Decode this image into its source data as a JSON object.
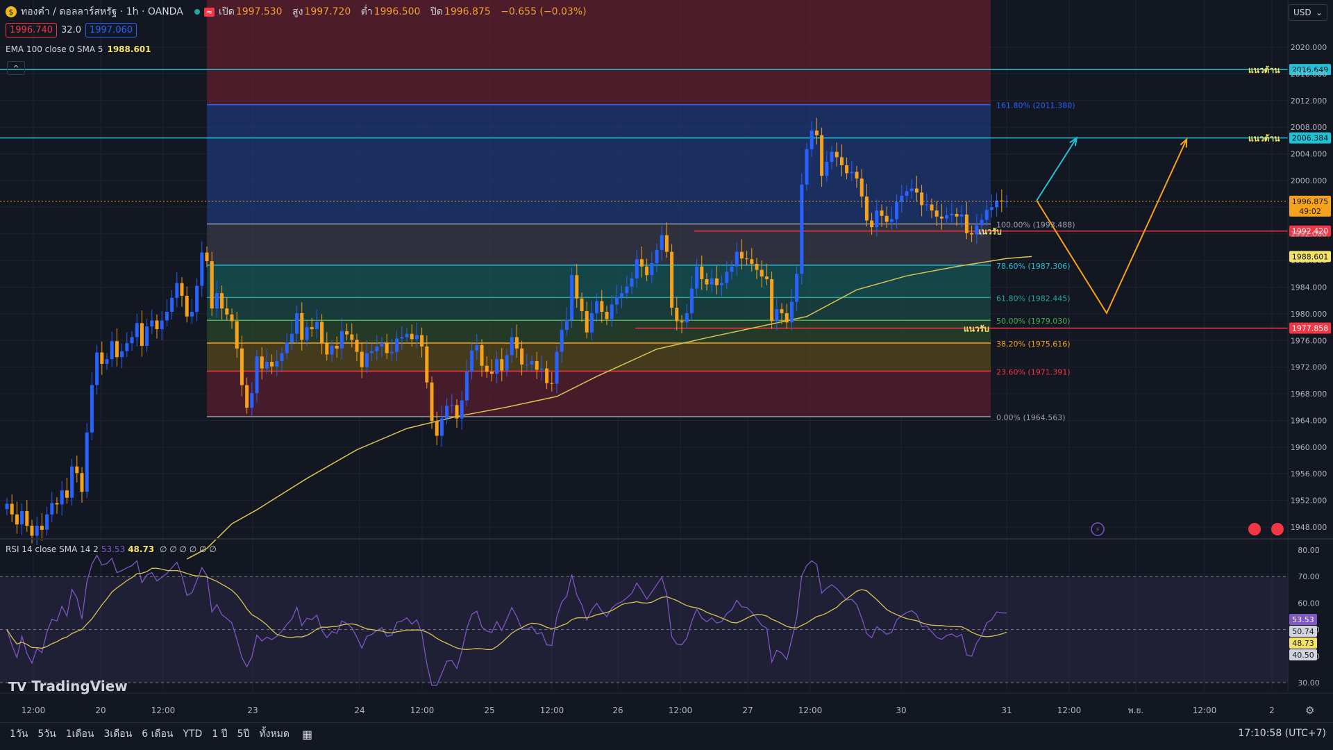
{
  "header": {
    "symbol": "ทองคำ / ดอลลาร์สหรัฐ · 1h · OANDA",
    "open_label": "เปิด",
    "open": "1997.530",
    "high_label": "สูง",
    "high": "1997.720",
    "low_label": "ต่ำ",
    "low": "1996.500",
    "close_label": "ปิด",
    "close": "1996.875",
    "change": "−0.655 (−0.03%)",
    "bid": "1996.740",
    "spread": "32.0",
    "ask": "1997.060"
  },
  "ema_legend": {
    "label": "EMA 100 close 0 SMA 5",
    "value": "1988.601"
  },
  "rsi_legend": {
    "label": "RSI 14 close SMA 14 2",
    "value_a": "53.53",
    "value_b": "48.73",
    "extra": "∅ ∅ ∅ ∅ ∅ ∅"
  },
  "currency": "USD",
  "branding": "TradingView",
  "bottom_bar": {
    "ranges": [
      "1วัน",
      "5วัน",
      "1เดือน",
      "3เดือน",
      "6 เดือน",
      "YTD",
      "1 ปี",
      "5ปี",
      "ทั้งหมด"
    ],
    "clock": "17:10:58 (UTC+7)"
  },
  "colors": {
    "bg": "#131722",
    "up": "#2962ff",
    "down": "#f7a21b",
    "ema": "#d8c552",
    "rsi": "#7e57c2",
    "resistance": "#22c1d6",
    "support": "#f23645"
  },
  "chart_data": {
    "type": "candlestick",
    "price_axis": {
      "min": 1946.0,
      "max": 2024.0,
      "ticks": [
        2020,
        2016,
        2012,
        2008,
        2004,
        2000,
        1996,
        1992,
        1988,
        1984,
        1980,
        1976,
        1972,
        1968,
        1964,
        1960,
        1956,
        1952,
        1948
      ]
    },
    "time_axis": [
      "12:00",
      "20",
      "12:00",
      "23",
      "24",
      "12:00",
      "25",
      "12:00",
      "26",
      "12:00",
      "27",
      "12:00",
      "30",
      "31",
      "12:00",
      "พ.ย.",
      "12:00",
      "2"
    ],
    "fibonacci": [
      {
        "level": "161.80%",
        "price": 2011.38
      },
      {
        "level": "100.00%",
        "price": 1993.488
      },
      {
        "level": "78.60%",
        "price": 1987.306
      },
      {
        "level": "61.80%",
        "price": 1982.445
      },
      {
        "level": "50.00%",
        "price": 1979.03
      },
      {
        "level": "38.20%",
        "price": 1975.616
      },
      {
        "level": "23.60%",
        "price": 1971.391
      },
      {
        "level": "0.00%",
        "price": 1964.563
      }
    ],
    "horizontal_lines": [
      {
        "label": "แนวต้าน",
        "price": 2016.649,
        "kind": "resistance"
      },
      {
        "label": "แนวต้าน",
        "price": 2006.384,
        "kind": "resistance"
      },
      {
        "label": "แนวรับ",
        "price": 1992.42,
        "kind": "support"
      },
      {
        "label": "แนวรับ",
        "price": 1977.858,
        "kind": "support"
      }
    ],
    "price_labels": {
      "last": "1996.875",
      "countdown": "49:02",
      "ema": "1988.601"
    },
    "closes": [
      1951.5,
      1949.9,
      1948.4,
      1950.4,
      1948.2,
      1946.7,
      1948.2,
      1947.6,
      1949.9,
      1951.6,
      1951.4,
      1953.5,
      1952.4,
      1957.1,
      1956.1,
      1953.3,
      1962.2,
      1969.3,
      1974.2,
      1972.5,
      1973.2,
      1975.9,
      1973.5,
      1974.4,
      1975.6,
      1976.5,
      1978.6,
      1975.2,
      1978.1,
      1979.0,
      1977.7,
      1979.0,
      1980.3,
      1982.4,
      1984.6,
      1982.7,
      1979.6,
      1980.3,
      1984.2,
      1989.2,
      1987.9,
      1980.8,
      1983.1,
      1980.8,
      1979.9,
      1978.9,
      1974.8,
      1969.3,
      1965.9,
      1968.1,
      1973.6,
      1971.8,
      1972.8,
      1972.1,
      1972.9,
      1974.1,
      1975.7,
      1977.0,
      1980.1,
      1976.1,
      1978.0,
      1977.7,
      1978.8,
      1975.6,
      1973.9,
      1975.2,
      1974.8,
      1977.4,
      1976.9,
      1976.1,
      1974.3,
      1972.0,
      1974.1,
      1974.4,
      1975.1,
      1975.6,
      1974.1,
      1974.3,
      1976.3,
      1976.5,
      1977.0,
      1976.2,
      1976.8,
      1975.1,
      1969.7,
      1963.9,
      1961.7,
      1964.3,
      1966.2,
      1966.3,
      1964.3,
      1967.0,
      1971.3,
      1974.5,
      1975.3,
      1972.2,
      1971.3,
      1971.0,
      1973.2,
      1971.5,
      1973.8,
      1976.5,
      1974.8,
      1972.4,
      1972.4,
      1972.9,
      1971.6,
      1971.8,
      1969.6,
      1969.5,
      1974.3,
      1977.6,
      1979.1,
      1985.8,
      1982.3,
      1980.4,
      1977.2,
      1980.1,
      1981.9,
      1980.3,
      1979.2,
      1981.4,
      1982.5,
      1983.1,
      1984.1,
      1985.3,
      1988.2,
      1987.1,
      1985.8,
      1987.6,
      1989.6,
      1991.8,
      1989.3,
      1980.9,
      1978.9,
      1978.7,
      1980.1,
      1983.8,
      1987.1,
      1985.2,
      1984.4,
      1985.3,
      1984.3,
      1984.6,
      1986.3,
      1987.1,
      1989.3,
      1988.3,
      1988.2,
      1987.5,
      1986.6,
      1985.6,
      1985.2,
      1978.9,
      1980.7,
      1980.1,
      1978.7,
      1981.8,
      1986.0,
      1999.4,
      2004.7,
      2007.5,
      2006.8,
      2000.7,
      2002.8,
      2004.3,
      2003.5,
      2002.3,
      2001.1,
      2001.3,
      2000.3,
      1997.6,
      1994.0,
      1993.0,
      1995.5,
      1994.7,
      1993.8,
      1994.2,
      1996.8,
      1997.7,
      1998.4,
      1998.8,
      1998.2,
      1996.3,
      1996.4,
      1995.5,
      1994.6,
      1994.3,
      1994.8,
      1995.0,
      1994.6,
      1994.9,
      1992.1,
      1991.9,
      1993.3,
      1994.1,
      1995.6,
      1996.0,
      1997.0,
      1996.9,
      1996.9
    ],
    "ema100": {
      "start": {
        "bar": 36,
        "price": 1943.2
      },
      "points": [
        [
          40,
          1944.8
        ],
        [
          45,
          1948.5
        ],
        [
          50,
          1950.6
        ],
        [
          60,
          1955.3
        ],
        [
          70,
          1959.6
        ],
        [
          80,
          1962.8
        ],
        [
          90,
          1964.6
        ],
        [
          100,
          1966.0
        ],
        [
          110,
          1967.6
        ],
        [
          118,
          1970.6
        ],
        [
          130,
          1974.7
        ],
        [
          140,
          1976.4
        ],
        [
          150,
          1978.0
        ],
        [
          160,
          1979.6
        ],
        [
          170,
          1983.6
        ],
        [
          180,
          1985.7
        ],
        [
          190,
          1987.1
        ],
        [
          200,
          1988.3
        ],
        [
          205,
          1988.6
        ]
      ]
    },
    "projection": [
      {
        "color": "#22c1d6",
        "points": [
          [
            206,
            1997.0
          ],
          [
            214,
            2006.4
          ]
        ]
      },
      {
        "color": "#f7a21b",
        "points": [
          [
            206,
            1997.0
          ],
          [
            220,
            1980.1
          ],
          [
            236,
            2006.2
          ]
        ]
      }
    ],
    "rsi": {
      "min": 25,
      "max": 82,
      "ticks": [
        80,
        70,
        60,
        50,
        40,
        30
      ],
      "bands": {
        "upper": 70,
        "middle": 50,
        "lower": 30
      },
      "labels": {
        "current": "53.53",
        "upper_val": "50.74",
        "sma": "48.73",
        "lower_val": "40.50"
      }
    }
  }
}
